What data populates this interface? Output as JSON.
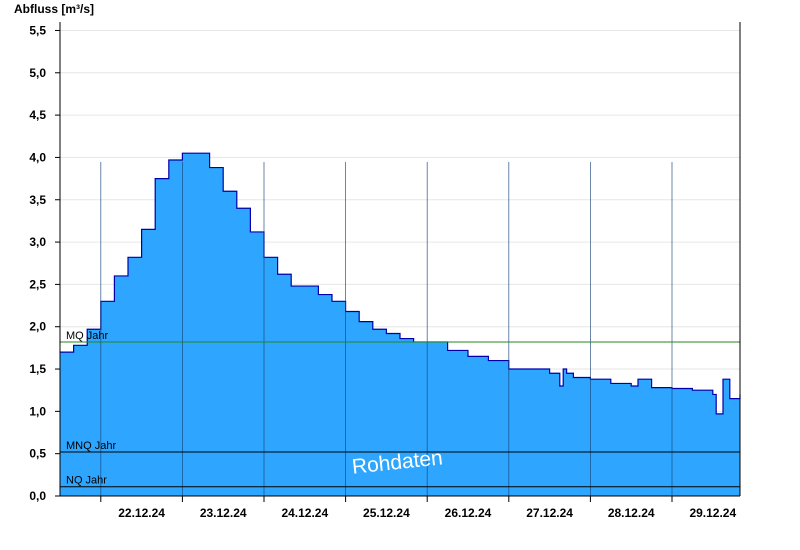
{
  "chart_data": {
    "type": "area",
    "ylabel": "Abfluss [m³/s]",
    "ylim": [
      0,
      5.6
    ],
    "yticks": [
      0.0,
      0.5,
      1.0,
      1.5,
      2.0,
      2.5,
      3.0,
      3.5,
      4.0,
      4.5,
      5.0,
      5.5
    ],
    "ytick_labels": [
      "0,0",
      "0,5",
      "1,0",
      "1,5",
      "2,0",
      "2,5",
      "3,0",
      "3,5",
      "4,0",
      "4,5",
      "5,0",
      "5,5"
    ],
    "xlim": [
      "2024-12-21T12:00",
      "2024-12-29T20:00"
    ],
    "x_tick_labels": [
      "22.12.24",
      "23.12.24",
      "24.12.24",
      "25.12.24",
      "26.12.24",
      "27.12.24",
      "28.12.24",
      "29.12.24"
    ],
    "grid": true,
    "fill_color": "#2ea6ff",
    "line_color": "#0000aa",
    "series": [
      {
        "x": [
          "2024-12-21T12:00",
          "2024-12-21T16:00",
          "2024-12-21T20:00",
          "2024-12-22T00:00",
          "2024-12-22T04:00",
          "2024-12-22T08:00",
          "2024-12-22T12:00",
          "2024-12-22T16:00",
          "2024-12-22T20:00",
          "2024-12-23T00:00",
          "2024-12-23T04:00",
          "2024-12-23T08:00",
          "2024-12-23T12:00",
          "2024-12-23T16:00",
          "2024-12-23T20:00",
          "2024-12-24T00:00",
          "2024-12-24T04:00",
          "2024-12-24T08:00",
          "2024-12-24T12:00",
          "2024-12-24T16:00",
          "2024-12-24T20:00",
          "2024-12-25T00:00",
          "2024-12-25T04:00",
          "2024-12-25T08:00",
          "2024-12-25T12:00",
          "2024-12-25T16:00",
          "2024-12-25T20:00",
          "2024-12-26T00:00",
          "2024-12-26T06:00",
          "2024-12-26T12:00",
          "2024-12-26T18:00",
          "2024-12-27T00:00",
          "2024-12-27T06:00",
          "2024-12-27T12:00",
          "2024-12-27T15:00",
          "2024-12-27T16:00",
          "2024-12-27T17:00",
          "2024-12-27T19:00",
          "2024-12-28T00:00",
          "2024-12-28T06:00",
          "2024-12-28T12:00",
          "2024-12-28T14:00",
          "2024-12-28T18:00",
          "2024-12-29T00:00",
          "2024-12-29T06:00",
          "2024-12-29T12:00",
          "2024-12-29T13:00",
          "2024-12-29T15:00",
          "2024-12-29T17:00",
          "2024-12-29T20:00"
        ],
        "y": [
          1.7,
          1.78,
          1.97,
          2.3,
          2.6,
          2.82,
          3.15,
          3.75,
          3.97,
          4.05,
          4.05,
          3.88,
          3.6,
          3.4,
          3.12,
          2.82,
          2.62,
          2.48,
          2.48,
          2.38,
          2.3,
          2.18,
          2.06,
          1.97,
          1.92,
          1.86,
          1.82,
          1.82,
          1.72,
          1.65,
          1.6,
          1.5,
          1.5,
          1.45,
          1.3,
          1.5,
          1.45,
          1.4,
          1.38,
          1.33,
          1.3,
          1.38,
          1.28,
          1.27,
          1.25,
          1.2,
          0.97,
          1.38,
          1.15,
          1.2
        ]
      }
    ],
    "reference_lines": [
      {
        "label": "MQ Jahr",
        "value": 1.82,
        "color": "#1f8a1f"
      },
      {
        "label": "MNQ Jahr",
        "value": 0.52,
        "color": "#000000"
      },
      {
        "label": "NQ Jahr",
        "value": 0.11,
        "color": "#000000"
      }
    ],
    "watermark": "Rohdaten"
  }
}
